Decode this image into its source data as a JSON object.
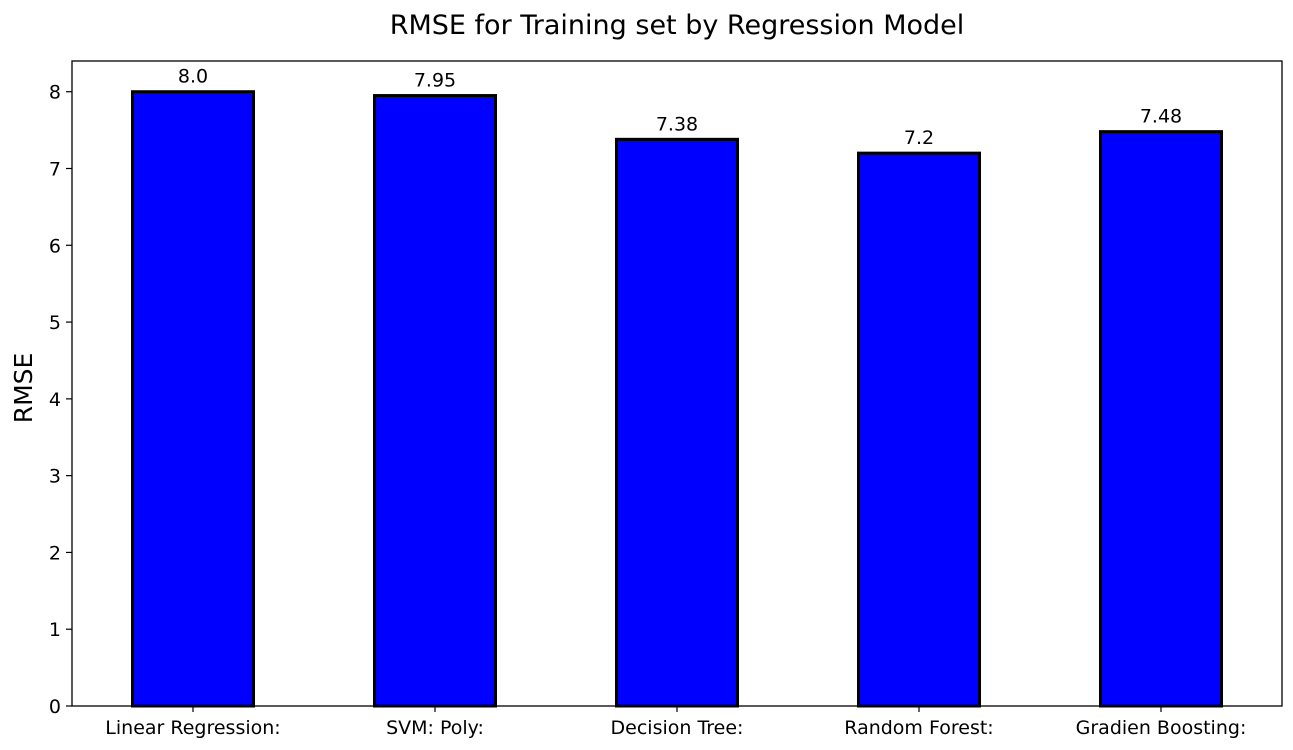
{
  "chart_data": {
    "type": "bar",
    "title": "RMSE for Training set by Regression Model",
    "xlabel": "",
    "ylabel": "RMSE",
    "categories": [
      "Linear Regression:",
      "SVM: Poly:",
      "Decision Tree:",
      "Random Forest:",
      "Gradien Boosting:"
    ],
    "values": [
      8.0,
      7.95,
      7.38,
      7.2,
      7.48
    ],
    "data_labels": [
      "8.0",
      "7.95",
      "7.38",
      "7.2",
      "7.48"
    ],
    "ylim": [
      0,
      8.4
    ],
    "yticks": [
      0,
      1,
      2,
      3,
      4,
      5,
      6,
      7,
      8
    ],
    "grid": false,
    "bar_color": "#0000ff",
    "edge_color": "#000000"
  }
}
